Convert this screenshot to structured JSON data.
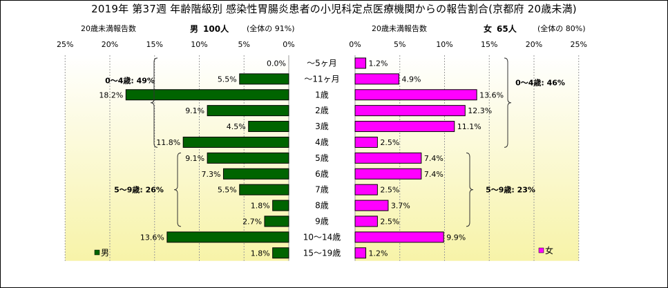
{
  "title": "2019年 第37週 年齢階級別 感染性胃腸炎患者の小児科定点医療機関からの報告割合(京都府 20歳未満)",
  "left_header": {
    "caption": "20歳未満報告数",
    "sex": "男",
    "count": "100人",
    "share": "(全体の 91%)"
  },
  "right_header": {
    "caption": "20歳未満報告数",
    "sex": "女",
    "count": "65人",
    "share": "(全体の 80%)"
  },
  "colors": {
    "male": "#006400",
    "female": "#ff00ff",
    "grid": "#999999",
    "panel_top": "#ffffff",
    "panel_bottom": "#f7f3a8"
  },
  "chart_data": [
    {
      "type": "bar",
      "name": "男",
      "orientation": "horizontal",
      "direction": "leftward",
      "categories": [
        "〜5ヶ月",
        "〜11ヶ月",
        "1歳",
        "2歳",
        "3歳",
        "4歳",
        "5歳",
        "6歳",
        "7歳",
        "8歳",
        "9歳",
        "10〜14歳",
        "15〜19歳"
      ],
      "values": [
        0.0,
        5.5,
        18.2,
        9.1,
        4.5,
        11.8,
        9.1,
        7.3,
        5.5,
        1.8,
        2.7,
        13.6,
        1.8
      ],
      "labels": [
        "0.0%",
        "5.5%",
        "18.2%",
        "9.1%",
        "4.5%",
        "11.8%",
        "9.1%",
        "7.3%",
        "5.5%",
        "1.8%",
        "2.7%",
        "13.6%",
        "1.8%"
      ],
      "xlim": [
        0,
        25
      ],
      "ticks": [
        "0%",
        "5%",
        "10%",
        "15%",
        "20%",
        "25%"
      ],
      "legend": "男",
      "groups": [
        {
          "label": "0〜4歳: 49%"
        },
        {
          "label": "5〜9歳: 26%"
        }
      ]
    },
    {
      "type": "bar",
      "name": "女",
      "orientation": "horizontal",
      "direction": "rightward",
      "categories": [
        "〜5ヶ月",
        "〜11ヶ月",
        "1歳",
        "2歳",
        "3歳",
        "4歳",
        "5歳",
        "6歳",
        "7歳",
        "8歳",
        "9歳",
        "10〜14歳",
        "15〜19歳"
      ],
      "values": [
        1.2,
        4.9,
        13.6,
        12.3,
        11.1,
        2.5,
        7.4,
        7.4,
        2.5,
        3.7,
        2.5,
        9.9,
        1.2
      ],
      "labels": [
        "1.2%",
        "4.9%",
        "13.6%",
        "12.3%",
        "11.1%",
        "2.5%",
        "7.4%",
        "7.4%",
        "2.5%",
        "3.7%",
        "2.5%",
        "9.9%",
        "1.2%"
      ],
      "xlim": [
        0,
        25
      ],
      "ticks": [
        "0%",
        "5%",
        "10%",
        "15%",
        "20%",
        "25%"
      ],
      "legend": "女",
      "groups": [
        {
          "label": "0〜4歳: 46%"
        },
        {
          "label": "5〜9歳: 23%"
        }
      ]
    }
  ]
}
